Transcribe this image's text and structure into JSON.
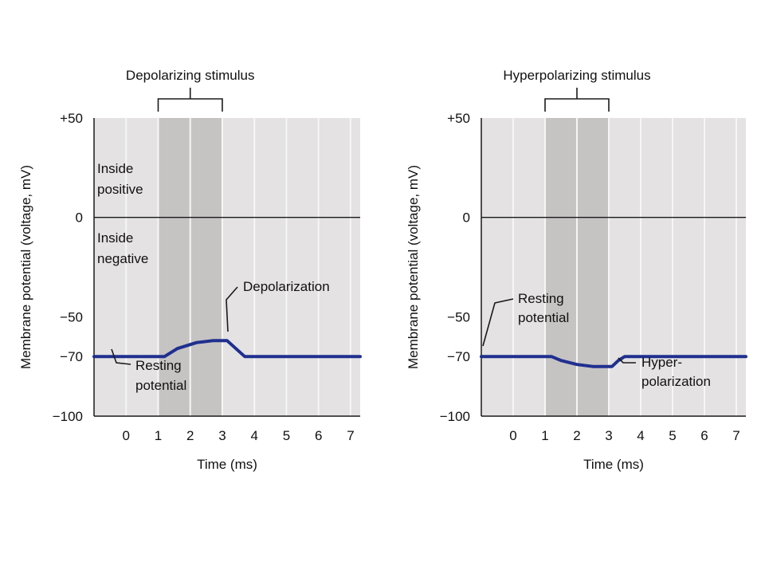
{
  "chart_data": [
    {
      "type": "line",
      "stimulus_label": "Depolarizing stimulus",
      "stimulus_range": [
        1,
        3
      ],
      "xlabel": "Time (ms)",
      "ylabel": "Membrane potential (voltage, mV)",
      "xlim": [
        -1,
        7.3
      ],
      "ylim": [
        -100,
        50
      ],
      "x_ticks": [
        "0",
        "1",
        "2",
        "3",
        "4",
        "5",
        "6",
        "7"
      ],
      "y_ticks": [
        {
          "value": 50,
          "label": "+50"
        },
        {
          "value": 0,
          "label": "0"
        },
        {
          "value": -50,
          "label": "−50"
        },
        {
          "value": -70,
          "label": "−70"
        },
        {
          "value": -100,
          "label": "−100"
        }
      ],
      "region_labels": {
        "upper": [
          "Inside",
          "positive"
        ],
        "lower": [
          "Inside",
          "negative"
        ]
      },
      "series": [
        {
          "color": "#1f2f8f",
          "points": [
            [
              -1,
              -70
            ],
            [
              1.2,
              -70
            ],
            [
              1.6,
              -66
            ],
            [
              2.2,
              -63
            ],
            [
              2.7,
              -62
            ],
            [
              3.15,
              -62
            ],
            [
              3.7,
              -70
            ],
            [
              7.3,
              -70
            ]
          ]
        }
      ],
      "annotations": [
        {
          "lines": [
            "Depolarization"
          ]
        },
        {
          "lines": [
            "Resting",
            "potential"
          ]
        }
      ]
    },
    {
      "type": "line",
      "stimulus_label": "Hyperpolarizing stimulus",
      "stimulus_range": [
        1,
        3
      ],
      "xlabel": "Time (ms)",
      "ylabel": "Membrane potential (voltage, mV)",
      "xlim": [
        -1,
        7.3
      ],
      "ylim": [
        -100,
        50
      ],
      "x_ticks": [
        "0",
        "1",
        "2",
        "3",
        "4",
        "5",
        "6",
        "7"
      ],
      "y_ticks": [
        {
          "value": 50,
          "label": "+50"
        },
        {
          "value": 0,
          "label": "0"
        },
        {
          "value": -50,
          "label": "−50"
        },
        {
          "value": -70,
          "label": "−70"
        },
        {
          "value": -100,
          "label": "−100"
        }
      ],
      "series": [
        {
          "color": "#1f2f8f",
          "points": [
            [
              -1,
              -70
            ],
            [
              1.2,
              -70
            ],
            [
              1.5,
              -72
            ],
            [
              2.0,
              -74
            ],
            [
              2.5,
              -75
            ],
            [
              3.1,
              -75
            ],
            [
              3.3,
              -72
            ],
            [
              3.5,
              -70
            ],
            [
              7.3,
              -70
            ]
          ]
        }
      ],
      "annotations": [
        {
          "lines": [
            "Resting",
            "potential"
          ]
        },
        {
          "lines": [
            "Hyper-",
            "polarization"
          ]
        }
      ]
    }
  ]
}
